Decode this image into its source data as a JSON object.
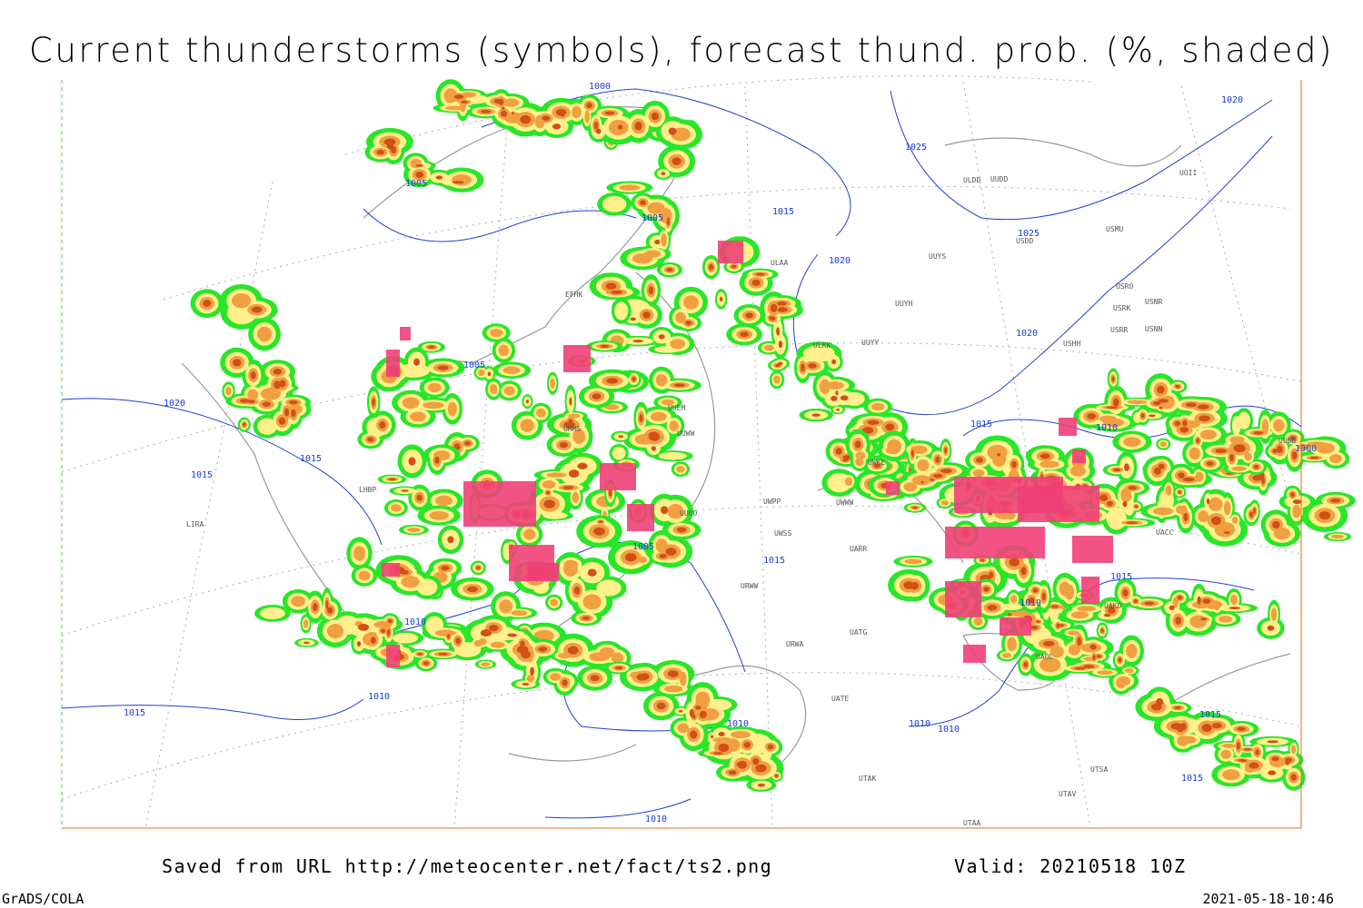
{
  "header": {
    "title": "Current thunderstorms (symbols), forecast thund. prob. (%, shaded)"
  },
  "map": {
    "isobar_labels": [
      "1000",
      "1005",
      "1005",
      "1005",
      "1020",
      "1015",
      "1015",
      "1025",
      "1025",
      "1020",
      "1020",
      "1020",
      "1015",
      "1010",
      "1010",
      "1015",
      "1015",
      "1005",
      "1010",
      "1010",
      "1010",
      "1015",
      "1015",
      "1010",
      "1010",
      "1015",
      "1015",
      "1010",
      "1000"
    ],
    "station_labels": [
      "ULAA",
      "UUYS",
      "UUYH",
      "ULDD",
      "USMU",
      "USRO",
      "USRK",
      "USNR",
      "USRR",
      "USNN",
      "USHH",
      "ULKK",
      "UUYY",
      "UUEM",
      "UUWW",
      "UWKE",
      "UWWW",
      "UWPP",
      "UUOO",
      "UWSS",
      "UARR",
      "URWW",
      "UATG",
      "URWA",
      "UATE",
      "UTAK",
      "UTAA",
      "LIRA",
      "UAKD",
      "UAOL",
      "UACC",
      "UOII",
      "USDD",
      "EFHK",
      "UUDD",
      "LHBP",
      "UTSA",
      "UTAV",
      "UUBB",
      "UMMS"
    ]
  },
  "footer": {
    "source": "Saved from URL http://meteocenter.net/fact/ts2.png",
    "valid": "Valid: 20210518 10Z",
    "software": "GrADS/COLA",
    "timestamp": "2021-05-18-10:46"
  }
}
